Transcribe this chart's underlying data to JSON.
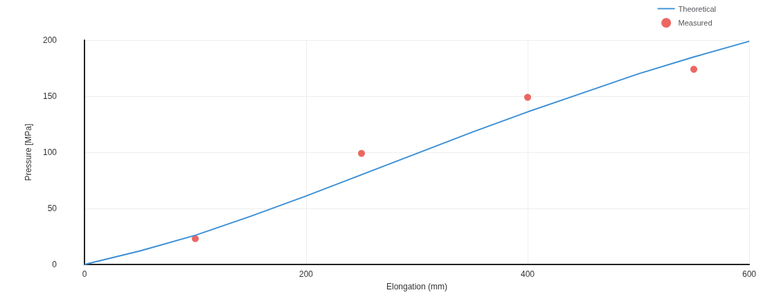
{
  "chart_data": {
    "type": "line",
    "xlabel": "Elongation (mm)",
    "ylabel": "Pressure [MPa]",
    "xlim": [
      0,
      600
    ],
    "xticks": [
      0,
      200,
      400,
      600
    ],
    "ylim": [
      0,
      200
    ],
    "yticks": [
      0,
      50,
      100,
      150,
      200
    ],
    "grid": true,
    "legend": "top right",
    "series": [
      {
        "name": "Theoretical",
        "color": "#3a8fd6",
        "marker": "none",
        "x": [
          0,
          50,
          100,
          150,
          200,
          250,
          300,
          350,
          400,
          450,
          500,
          550,
          600
        ],
        "values": [
          0,
          12,
          26,
          43,
          61,
          80,
          99,
          118,
          136,
          153,
          170,
          185,
          199
        ]
      },
      {
        "name": "Measured",
        "type": "scatter",
        "color": "#e8413a",
        "marker": "circle",
        "x": [
          100,
          250,
          400,
          550
        ],
        "values": [
          23,
          99,
          149,
          174
        ]
      }
    ]
  }
}
